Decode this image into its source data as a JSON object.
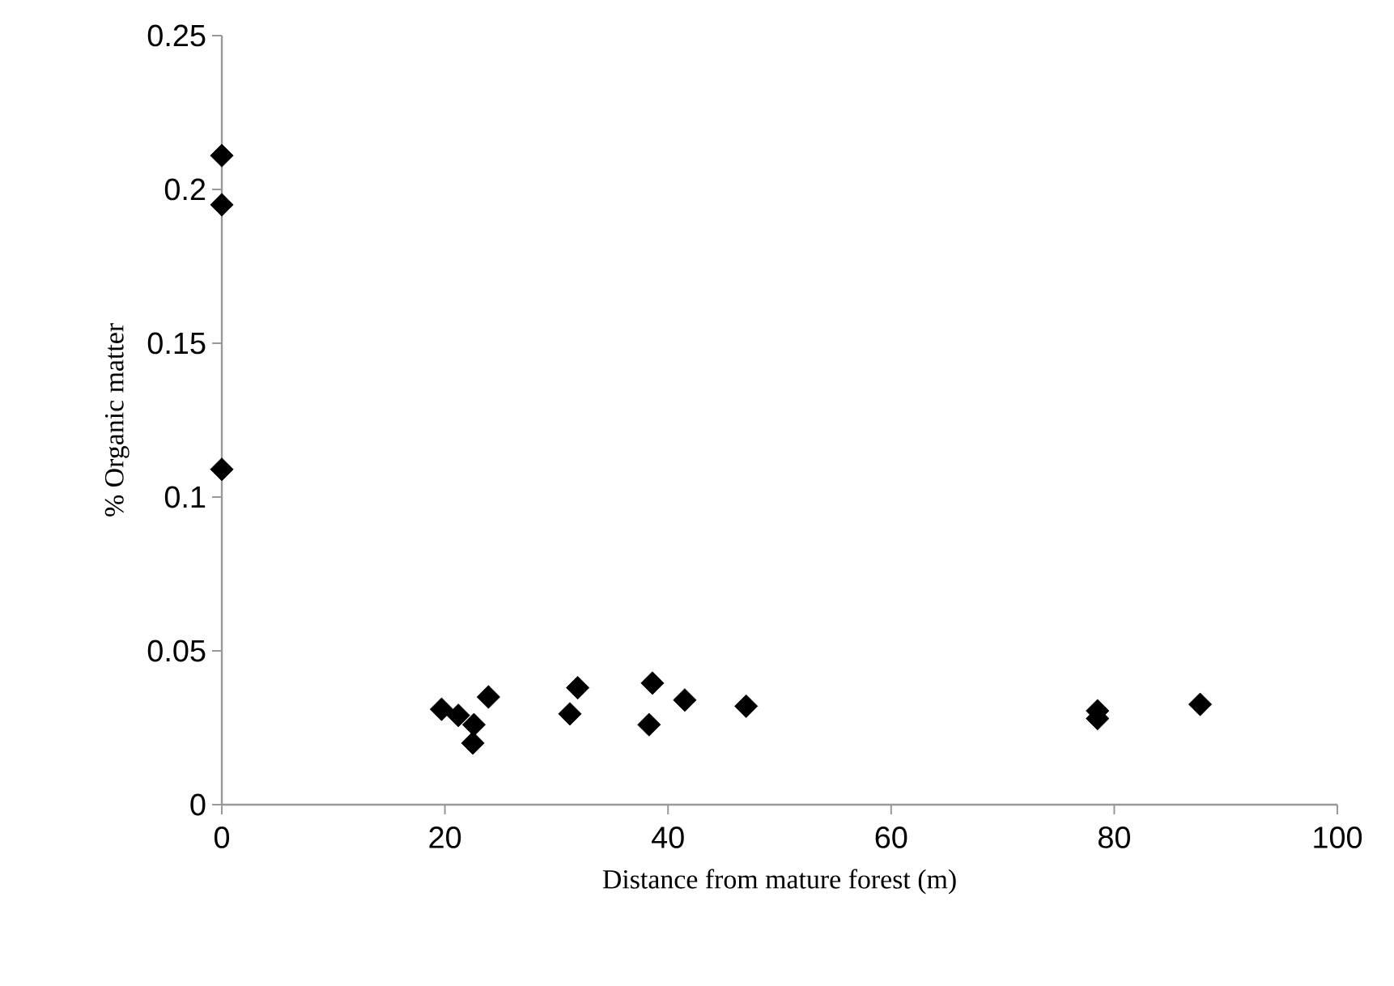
{
  "chart_data": {
    "type": "scatter",
    "xlabel": "Distance from mature forest (m)",
    "ylabel": "% Organic matter",
    "x": [
      0,
      0,
      0,
      19.7,
      21.2,
      22.6,
      22.5,
      23.9,
      31.2,
      31.9,
      38.3,
      38.6,
      41.5,
      47.0,
      78.5,
      78.5,
      87.7
    ],
    "values": [
      0.211,
      0.195,
      0.109,
      0.031,
      0.029,
      0.026,
      0.02,
      0.035,
      0.0295,
      0.038,
      0.026,
      0.0395,
      0.034,
      0.032,
      0.0305,
      0.028,
      0.0326
    ],
    "color": "#000000",
    "marker": "diamond",
    "xlim": [
      0,
      100
    ],
    "xticks": [
      0,
      20,
      40,
      60,
      80,
      100
    ],
    "ylim": [
      0,
      0.25
    ],
    "yticks": [
      0,
      0.05,
      0.1,
      0.15,
      0.2,
      0.25
    ],
    "grid": false
  }
}
